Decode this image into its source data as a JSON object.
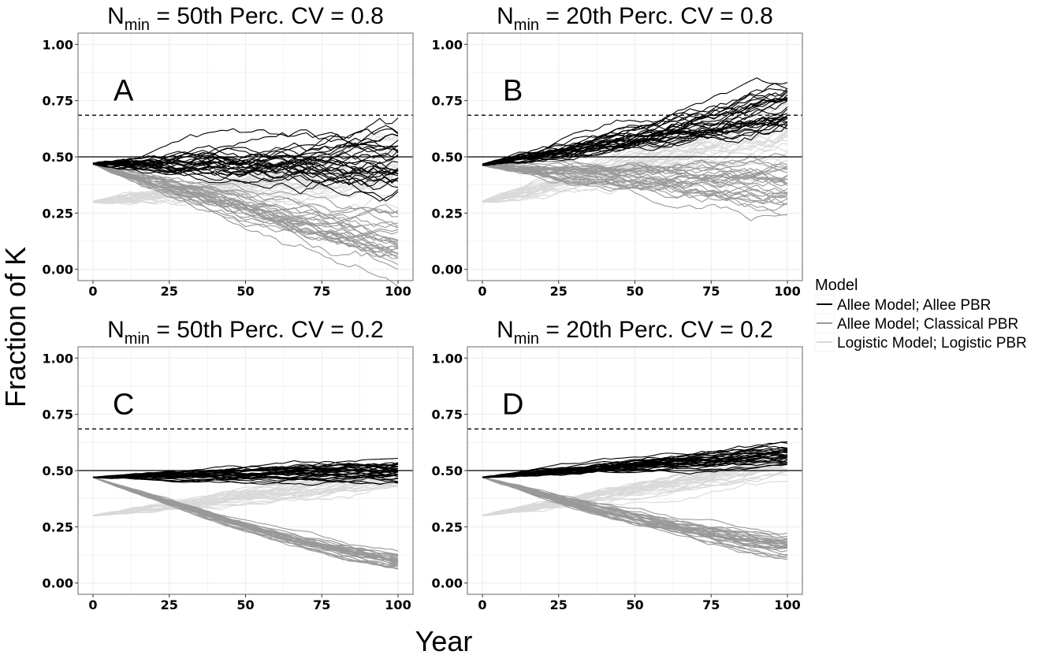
{
  "colors": {
    "allee_allee": "#000000",
    "allee_classical": "#999999",
    "logistic": "#d9d9d9",
    "grid": "#ebebeb",
    "frame": "#7f7f7f"
  },
  "axis_titles": {
    "x": "Year",
    "y": "Fraction of K"
  },
  "legend": {
    "title": "Model",
    "entries": [
      {
        "label": "Allee Model; Allee PBR",
        "color": "#000000"
      },
      {
        "label": "Allee Model; Classical PBR",
        "color": "#999999"
      },
      {
        "label": "Logistic Model; Logistic PBR",
        "color": "#d9d9d9"
      }
    ]
  },
  "chart_data": [
    {
      "type": "line",
      "panel": "A",
      "title": {
        "prefix": "N",
        "sub": "min",
        "text": " = 50th  Perc.  CV = 0.8"
      },
      "xlim": [
        0,
        100
      ],
      "ylim": [
        0,
        1
      ],
      "xticks": [
        "0",
        "25",
        "50",
        "75",
        "100"
      ],
      "yticks": [
        "0.00",
        "0.25",
        "0.50",
        "0.75",
        "1.00"
      ],
      "ref_solid": 0.5,
      "ref_dashed": 0.685,
      "series": [
        {
          "name": "Allee Model; Allee PBR",
          "start": 0.47,
          "end": 0.48,
          "spread": 0.09,
          "noise": 0.012,
          "count": 30
        },
        {
          "name": "Allee Model; Classical PBR",
          "start": 0.47,
          "end": 0.12,
          "spread": 0.07,
          "noise": 0.01,
          "count": 30
        },
        {
          "name": "Logistic Model; Logistic PBR",
          "start": 0.3,
          "end": 0.45,
          "spread": 0.08,
          "noise": 0.012,
          "count": 30
        }
      ]
    },
    {
      "type": "line",
      "panel": "B",
      "title": {
        "prefix": "N",
        "sub": "min",
        "text": " = 20th  Perc.  CV = 0.8"
      },
      "xlim": [
        0,
        100
      ],
      "ylim": [
        0,
        1
      ],
      "xticks": [
        "0",
        "25",
        "50",
        "75",
        "100"
      ],
      "yticks": [
        "0.00",
        "0.25",
        "0.50",
        "0.75",
        "1.00"
      ],
      "ref_solid": 0.5,
      "ref_dashed": 0.685,
      "series": [
        {
          "name": "Allee Model; Allee PBR",
          "start": 0.465,
          "end": 0.71,
          "spread": 0.06,
          "noise": 0.01,
          "count": 30
        },
        {
          "name": "Allee Model; Classical PBR",
          "start": 0.465,
          "end": 0.36,
          "spread": 0.08,
          "noise": 0.01,
          "count": 30
        },
        {
          "name": "Logistic Model; Logistic PBR",
          "start": 0.3,
          "end": 0.66,
          "spread": 0.08,
          "noise": 0.012,
          "count": 30
        }
      ]
    },
    {
      "type": "line",
      "panel": "C",
      "title": {
        "prefix": "N",
        "sub": "min",
        "text": " = 50th  Perc.  CV = 0.2"
      },
      "xlim": [
        0,
        100
      ],
      "ylim": [
        0,
        1
      ],
      "xticks": [
        "0",
        "25",
        "50",
        "75",
        "100"
      ],
      "yticks": [
        "0.00",
        "0.25",
        "0.50",
        "0.75",
        "1.00"
      ],
      "ref_solid": 0.5,
      "ref_dashed": 0.685,
      "series": [
        {
          "name": "Allee Model; Allee PBR",
          "start": 0.47,
          "end": 0.5,
          "spread": 0.03,
          "noise": 0.004,
          "count": 30
        },
        {
          "name": "Allee Model; Classical PBR",
          "start": 0.47,
          "end": 0.1,
          "spread": 0.025,
          "noise": 0.003,
          "count": 30
        },
        {
          "name": "Logistic Model; Logistic PBR",
          "start": 0.3,
          "end": 0.47,
          "spread": 0.04,
          "noise": 0.005,
          "count": 30
        }
      ]
    },
    {
      "type": "line",
      "panel": "D",
      "title": {
        "prefix": "N",
        "sub": "min",
        "text": " = 20th  Perc.  CV = 0.2"
      },
      "xlim": [
        0,
        100
      ],
      "ylim": [
        0,
        1
      ],
      "xticks": [
        "0",
        "25",
        "50",
        "75",
        "100"
      ],
      "yticks": [
        "0.00",
        "0.25",
        "0.50",
        "0.75",
        "1.00"
      ],
      "ref_solid": 0.5,
      "ref_dashed": 0.685,
      "series": [
        {
          "name": "Allee Model; Allee PBR",
          "start": 0.47,
          "end": 0.575,
          "spread": 0.03,
          "noise": 0.004,
          "count": 30
        },
        {
          "name": "Allee Model; Classical PBR",
          "start": 0.47,
          "end": 0.155,
          "spread": 0.04,
          "noise": 0.004,
          "count": 30
        },
        {
          "name": "Logistic Model; Logistic PBR",
          "start": 0.3,
          "end": 0.525,
          "spread": 0.04,
          "noise": 0.005,
          "count": 30
        }
      ]
    }
  ]
}
